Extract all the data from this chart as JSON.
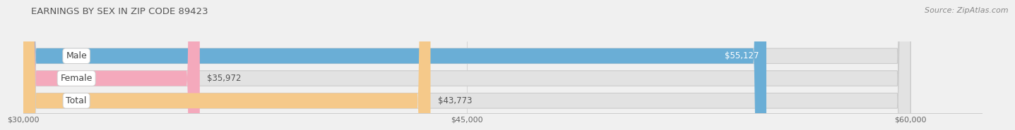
{
  "title": "EARNINGS BY SEX IN ZIP CODE 89423",
  "source": "Source: ZipAtlas.com",
  "categories": [
    "Male",
    "Female",
    "Total"
  ],
  "values": [
    55127,
    35972,
    43773
  ],
  "bar_colors": [
    "#6aaed6",
    "#f4a9bc",
    "#f5c98a"
  ],
  "value_labels": [
    "$55,127",
    "$35,972",
    "$43,773"
  ],
  "value_inside": [
    true,
    false,
    false
  ],
  "xmin": 30000,
  "xmax": 60000,
  "xticks": [
    30000,
    45000,
    60000
  ],
  "xtick_labels": [
    "$30,000",
    "$45,000",
    "$60,000"
  ],
  "background_color": "#f0f0f0",
  "bar_bg_color": "#e2e2e2",
  "title_fontsize": 9.5,
  "source_fontsize": 8,
  "label_fontsize": 9,
  "value_fontsize": 8.5,
  "tick_fontsize": 8
}
